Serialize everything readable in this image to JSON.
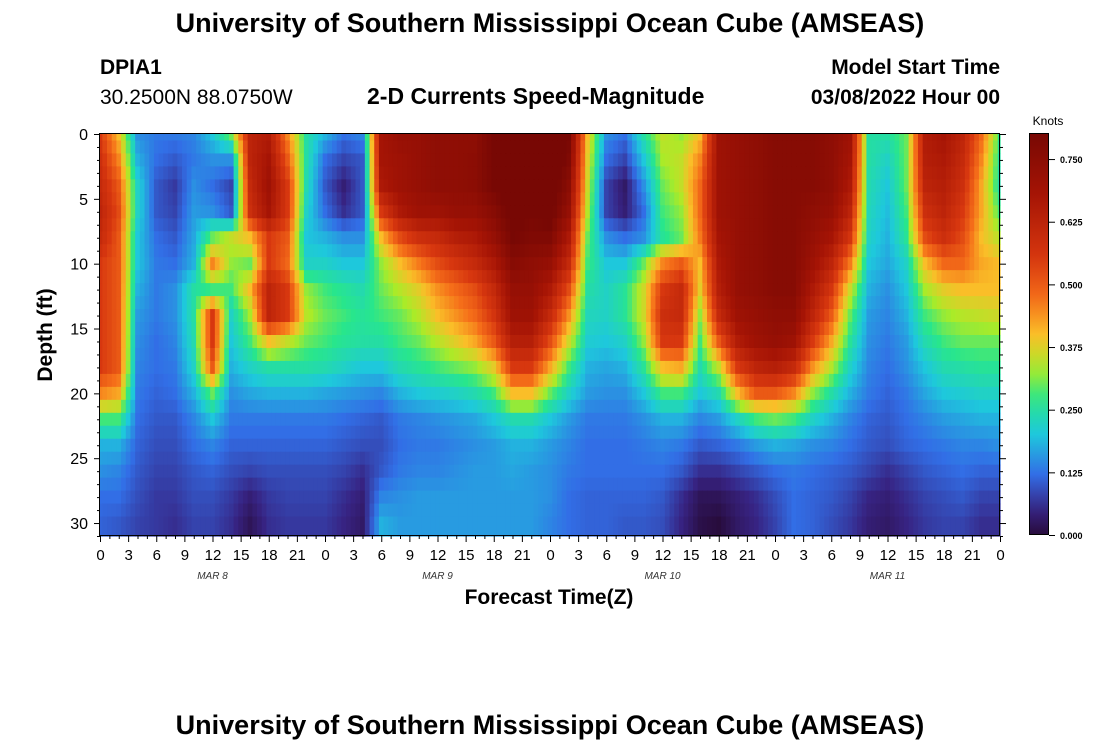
{
  "header": {
    "title": "University of Southern Mississippi Ocean Cube (AMSEAS)",
    "station_id": "DPIA1",
    "station_coords": "30.2500N  88.0750W",
    "chart_title": "2-D Currents Speed-Magnitude",
    "model_start_label": "Model Start Time",
    "model_start_value": "03/08/2022 Hour 00"
  },
  "footer": {
    "title": "University of Southern Mississippi Ocean Cube (AMSEAS)"
  },
  "chart_data": {
    "type": "heatmap",
    "title": "2-D Currents Speed-Magnitude",
    "xlabel": "Forecast Time(Z)",
    "ylabel": "Depth (ft)",
    "x_start_hour": 0,
    "x_end_hour": 96,
    "x_tick_labels": [
      "0",
      "3",
      "6",
      "9",
      "12",
      "15",
      "18",
      "21",
      "0",
      "3",
      "6",
      "9",
      "12",
      "15",
      "18",
      "21",
      "0",
      "3",
      "6",
      "9",
      "12",
      "15",
      "18",
      "21",
      "0",
      "3",
      "6",
      "9",
      "12",
      "15",
      "18",
      "21",
      "0"
    ],
    "day_labels": [
      {
        "text": "MAR 8",
        "hour": 12
      },
      {
        "text": "MAR 9",
        "hour": 36
      },
      {
        "text": "MAR 10",
        "hour": 60
      },
      {
        "text": "MAR 11",
        "hour": 84
      }
    ],
    "ylim": [
      0,
      31
    ],
    "y_ticks": [
      0,
      5,
      10,
      15,
      20,
      25,
      30
    ],
    "y_tick_labels": [
      "0",
      "5",
      "10",
      "15",
      "20",
      "25",
      "30"
    ],
    "colorbar": {
      "unit": "Knots",
      "min": 0.0,
      "max": 0.8,
      "ticks": [
        0.0,
        0.125,
        0.25,
        0.375,
        0.5,
        0.625,
        0.75
      ],
      "tick_labels": [
        "0.000",
        "0.125",
        "0.250",
        "0.375",
        "0.500",
        "0.625",
        "0.750"
      ]
    },
    "grid_times_hours": [
      0,
      2,
      4,
      6,
      8,
      10,
      12,
      14,
      16,
      18,
      20,
      22,
      24,
      26,
      28,
      30,
      32,
      34,
      36,
      38,
      40,
      42,
      44,
      46,
      48,
      50,
      52,
      54,
      56,
      58,
      60,
      62,
      64,
      66,
      68,
      70,
      72,
      74,
      76,
      78,
      80,
      82,
      84,
      86,
      88,
      90,
      92,
      94,
      96
    ],
    "grid_depths_ft": [
      0,
      2,
      4,
      6,
      8,
      10,
      12,
      14,
      16,
      18,
      20,
      22,
      24,
      26,
      28,
      30
    ],
    "values_knots": [
      [
        0.55,
        0.4,
        0.15,
        0.13,
        0.13,
        0.14,
        0.2,
        0.3,
        0.62,
        0.65,
        0.45,
        0.25,
        0.18,
        0.12,
        0.14,
        0.68,
        0.72,
        0.72,
        0.74,
        0.74,
        0.74,
        0.8,
        0.84,
        0.82,
        0.85,
        0.8,
        0.4,
        0.15,
        0.12,
        0.25,
        0.35,
        0.32,
        0.4,
        0.7,
        0.72,
        0.74,
        0.76,
        0.76,
        0.76,
        0.74,
        0.7,
        0.25,
        0.25,
        0.3,
        0.65,
        0.68,
        0.62,
        0.48,
        0.27
      ],
      [
        0.58,
        0.45,
        0.18,
        0.12,
        0.1,
        0.13,
        0.15,
        0.15,
        0.62,
        0.68,
        0.5,
        0.25,
        0.12,
        0.08,
        0.1,
        0.68,
        0.7,
        0.72,
        0.74,
        0.74,
        0.75,
        0.8,
        0.84,
        0.82,
        0.85,
        0.78,
        0.38,
        0.12,
        0.08,
        0.2,
        0.33,
        0.35,
        0.45,
        0.7,
        0.72,
        0.74,
        0.76,
        0.76,
        0.76,
        0.74,
        0.68,
        0.25,
        0.22,
        0.3,
        0.64,
        0.66,
        0.6,
        0.45,
        0.25
      ],
      [
        0.6,
        0.5,
        0.22,
        0.1,
        0.07,
        0.15,
        0.12,
        0.08,
        0.6,
        0.7,
        0.55,
        0.24,
        0.1,
        0.04,
        0.1,
        0.66,
        0.7,
        0.72,
        0.74,
        0.74,
        0.75,
        0.8,
        0.83,
        0.82,
        0.84,
        0.75,
        0.36,
        0.08,
        0.03,
        0.15,
        0.3,
        0.35,
        0.48,
        0.7,
        0.72,
        0.74,
        0.76,
        0.76,
        0.76,
        0.74,
        0.66,
        0.24,
        0.2,
        0.3,
        0.62,
        0.64,
        0.58,
        0.42,
        0.24
      ],
      [
        0.62,
        0.52,
        0.22,
        0.1,
        0.08,
        0.16,
        0.15,
        0.1,
        0.58,
        0.68,
        0.55,
        0.22,
        0.12,
        0.06,
        0.1,
        0.55,
        0.66,
        0.7,
        0.7,
        0.72,
        0.72,
        0.76,
        0.82,
        0.8,
        0.82,
        0.72,
        0.34,
        0.08,
        0.04,
        0.12,
        0.28,
        0.32,
        0.48,
        0.7,
        0.72,
        0.74,
        0.76,
        0.76,
        0.74,
        0.72,
        0.62,
        0.23,
        0.19,
        0.28,
        0.58,
        0.62,
        0.55,
        0.42,
        0.28
      ],
      [
        0.6,
        0.5,
        0.2,
        0.12,
        0.1,
        0.17,
        0.3,
        0.35,
        0.4,
        0.55,
        0.5,
        0.2,
        0.18,
        0.15,
        0.15,
        0.4,
        0.52,
        0.58,
        0.6,
        0.64,
        0.66,
        0.72,
        0.8,
        0.78,
        0.78,
        0.66,
        0.3,
        0.15,
        0.12,
        0.15,
        0.26,
        0.3,
        0.46,
        0.68,
        0.72,
        0.74,
        0.76,
        0.76,
        0.72,
        0.68,
        0.56,
        0.22,
        0.18,
        0.26,
        0.52,
        0.58,
        0.52,
        0.4,
        0.34
      ],
      [
        0.55,
        0.5,
        0.2,
        0.13,
        0.12,
        0.18,
        0.45,
        0.32,
        0.3,
        0.55,
        0.48,
        0.22,
        0.22,
        0.2,
        0.2,
        0.32,
        0.4,
        0.46,
        0.52,
        0.56,
        0.6,
        0.66,
        0.76,
        0.74,
        0.72,
        0.6,
        0.28,
        0.2,
        0.2,
        0.3,
        0.45,
        0.5,
        0.4,
        0.66,
        0.72,
        0.74,
        0.76,
        0.76,
        0.7,
        0.62,
        0.46,
        0.2,
        0.17,
        0.22,
        0.4,
        0.48,
        0.48,
        0.42,
        0.4
      ],
      [
        0.55,
        0.5,
        0.18,
        0.13,
        0.15,
        0.25,
        0.28,
        0.28,
        0.4,
        0.62,
        0.55,
        0.32,
        0.28,
        0.26,
        0.24,
        0.3,
        0.34,
        0.38,
        0.44,
        0.48,
        0.52,
        0.6,
        0.72,
        0.72,
        0.66,
        0.52,
        0.25,
        0.22,
        0.26,
        0.36,
        0.55,
        0.6,
        0.38,
        0.64,
        0.72,
        0.74,
        0.76,
        0.76,
        0.66,
        0.56,
        0.36,
        0.18,
        0.15,
        0.2,
        0.33,
        0.38,
        0.4,
        0.4,
        0.4
      ],
      [
        0.55,
        0.5,
        0.16,
        0.13,
        0.15,
        0.25,
        0.55,
        0.22,
        0.33,
        0.62,
        0.55,
        0.34,
        0.3,
        0.28,
        0.26,
        0.28,
        0.3,
        0.34,
        0.4,
        0.44,
        0.48,
        0.56,
        0.7,
        0.7,
        0.6,
        0.44,
        0.23,
        0.22,
        0.26,
        0.36,
        0.58,
        0.6,
        0.32,
        0.6,
        0.7,
        0.72,
        0.74,
        0.74,
        0.62,
        0.5,
        0.3,
        0.16,
        0.14,
        0.18,
        0.28,
        0.32,
        0.34,
        0.35,
        0.36
      ],
      [
        0.55,
        0.5,
        0.15,
        0.12,
        0.14,
        0.24,
        0.55,
        0.2,
        0.28,
        0.4,
        0.35,
        0.3,
        0.28,
        0.26,
        0.25,
        0.25,
        0.28,
        0.3,
        0.34,
        0.38,
        0.42,
        0.5,
        0.64,
        0.64,
        0.52,
        0.36,
        0.21,
        0.2,
        0.22,
        0.32,
        0.55,
        0.55,
        0.28,
        0.5,
        0.65,
        0.7,
        0.72,
        0.7,
        0.55,
        0.42,
        0.26,
        0.15,
        0.13,
        0.16,
        0.24,
        0.28,
        0.3,
        0.3,
        0.3
      ],
      [
        0.55,
        0.5,
        0.14,
        0.12,
        0.13,
        0.22,
        0.5,
        0.18,
        0.22,
        0.25,
        0.25,
        0.25,
        0.24,
        0.22,
        0.2,
        0.2,
        0.24,
        0.26,
        0.28,
        0.3,
        0.32,
        0.38,
        0.55,
        0.55,
        0.42,
        0.28,
        0.18,
        0.17,
        0.18,
        0.26,
        0.4,
        0.42,
        0.24,
        0.35,
        0.55,
        0.62,
        0.64,
        0.6,
        0.44,
        0.34,
        0.22,
        0.14,
        0.12,
        0.15,
        0.2,
        0.24,
        0.25,
        0.26,
        0.26
      ],
      [
        0.45,
        0.42,
        0.13,
        0.11,
        0.12,
        0.18,
        0.3,
        0.15,
        0.17,
        0.18,
        0.18,
        0.18,
        0.17,
        0.16,
        0.15,
        0.14,
        0.18,
        0.2,
        0.21,
        0.22,
        0.24,
        0.28,
        0.4,
        0.4,
        0.3,
        0.22,
        0.16,
        0.15,
        0.15,
        0.2,
        0.28,
        0.28,
        0.2,
        0.24,
        0.4,
        0.5,
        0.5,
        0.45,
        0.32,
        0.25,
        0.18,
        0.13,
        0.11,
        0.13,
        0.17,
        0.2,
        0.21,
        0.22,
        0.22
      ],
      [
        0.28,
        0.28,
        0.12,
        0.1,
        0.1,
        0.14,
        0.2,
        0.13,
        0.13,
        0.13,
        0.13,
        0.13,
        0.13,
        0.12,
        0.11,
        0.1,
        0.13,
        0.14,
        0.15,
        0.16,
        0.17,
        0.2,
        0.24,
        0.24,
        0.2,
        0.16,
        0.13,
        0.13,
        0.13,
        0.15,
        0.18,
        0.18,
        0.14,
        0.16,
        0.22,
        0.28,
        0.3,
        0.28,
        0.22,
        0.18,
        0.14,
        0.11,
        0.1,
        0.12,
        0.14,
        0.16,
        0.17,
        0.18,
        0.18
      ],
      [
        0.18,
        0.18,
        0.11,
        0.09,
        0.09,
        0.12,
        0.14,
        0.11,
        0.11,
        0.11,
        0.11,
        0.11,
        0.11,
        0.1,
        0.09,
        0.09,
        0.12,
        0.13,
        0.13,
        0.14,
        0.15,
        0.16,
        0.18,
        0.18,
        0.16,
        0.14,
        0.12,
        0.12,
        0.12,
        0.13,
        0.14,
        0.13,
        0.1,
        0.11,
        0.13,
        0.16,
        0.18,
        0.17,
        0.15,
        0.14,
        0.12,
        0.1,
        0.09,
        0.11,
        0.12,
        0.13,
        0.14,
        0.14,
        0.15
      ],
      [
        0.15,
        0.14,
        0.1,
        0.08,
        0.08,
        0.1,
        0.11,
        0.09,
        0.08,
        0.09,
        0.09,
        0.09,
        0.09,
        0.08,
        0.06,
        0.1,
        0.13,
        0.14,
        0.14,
        0.15,
        0.16,
        0.16,
        0.17,
        0.16,
        0.15,
        0.13,
        0.12,
        0.12,
        0.12,
        0.12,
        0.12,
        0.1,
        0.06,
        0.06,
        0.08,
        0.1,
        0.12,
        0.13,
        0.12,
        0.11,
        0.1,
        0.08,
        0.06,
        0.08,
        0.1,
        0.11,
        0.12,
        0.11,
        0.11
      ],
      [
        0.12,
        0.12,
        0.09,
        0.07,
        0.07,
        0.09,
        0.09,
        0.07,
        0.04,
        0.07,
        0.08,
        0.08,
        0.08,
        0.06,
        0.04,
        0.14,
        0.15,
        0.16,
        0.16,
        0.16,
        0.16,
        0.16,
        0.16,
        0.16,
        0.15,
        0.12,
        0.11,
        0.11,
        0.11,
        0.11,
        0.1,
        0.06,
        0.02,
        0.02,
        0.04,
        0.06,
        0.09,
        0.12,
        0.11,
        0.1,
        0.08,
        0.05,
        0.04,
        0.06,
        0.08,
        0.09,
        0.1,
        0.08,
        0.08
      ],
      [
        0.11,
        0.1,
        0.08,
        0.07,
        0.06,
        0.08,
        0.08,
        0.06,
        0.02,
        0.06,
        0.07,
        0.07,
        0.07,
        0.05,
        0.03,
        0.18,
        0.16,
        0.16,
        0.16,
        0.16,
        0.16,
        0.16,
        0.16,
        0.16,
        0.14,
        0.12,
        0.11,
        0.11,
        0.1,
        0.1,
        0.09,
        0.05,
        0.01,
        0.0,
        0.03,
        0.05,
        0.08,
        0.12,
        0.11,
        0.09,
        0.07,
        0.04,
        0.03,
        0.05,
        0.07,
        0.08,
        0.08,
        0.06,
        0.06
      ]
    ]
  }
}
